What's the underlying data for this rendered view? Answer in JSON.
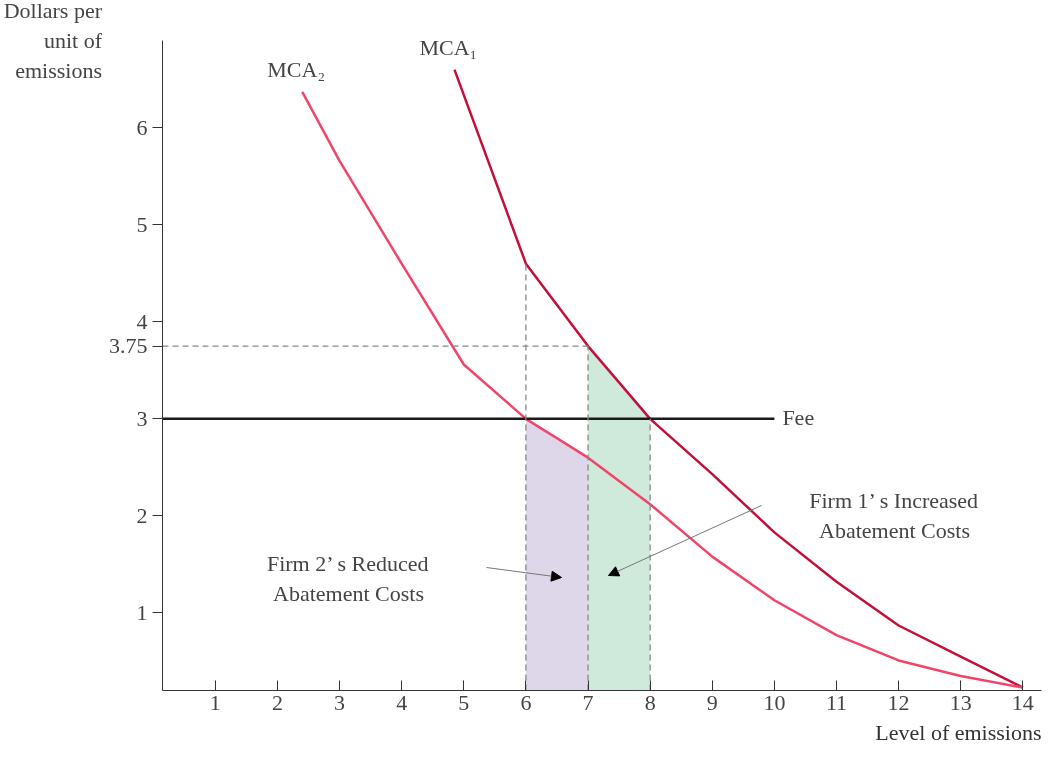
{
  "chart_data": {
    "type": "line",
    "xlabel": "Level of emissions",
    "ylabel": "Dollars per unit of emissions",
    "xlim": [
      0.15,
      14.3
    ],
    "ylim": [
      0.2,
      6.9
    ],
    "xticks": [
      1,
      2,
      3,
      4,
      5,
      6,
      7,
      8,
      9,
      10,
      11,
      12,
      13,
      14
    ],
    "yticks": [
      1,
      2,
      3,
      {
        "value": 3.75,
        "label": "3.75"
      },
      4,
      5,
      6
    ],
    "grid": false,
    "marker": "none",
    "series": [
      {
        "name": "MCA₁",
        "color": "#c2103a",
        "x": [
          4.85,
          6,
          7,
          8,
          9,
          10,
          11,
          12,
          13,
          14
        ],
        "values": [
          6.6,
          4.6,
          3.75,
          3.0,
          2.43,
          1.83,
          1.32,
          0.87,
          0.55,
          0.23
        ]
      },
      {
        "name": "MCA₂",
        "color": "#f0456a",
        "x": [
          2.4,
          3,
          4,
          5,
          6,
          7,
          8,
          9,
          10,
          11,
          12,
          13,
          14
        ],
        "values": [
          6.37,
          5.66,
          4.6,
          3.56,
          3.0,
          2.6,
          2.12,
          1.58,
          1.13,
          0.77,
          0.51,
          0.35,
          0.23
        ]
      },
      {
        "name": "Fee",
        "color": "#1a1a1a",
        "x": [
          0.15,
          10
        ],
        "values": [
          3,
          3
        ]
      },
      {
        "type": "area",
        "color": "#ded7ea",
        "x": [
          6,
          6.5,
          7
        ],
        "values": [
          3.0,
          2.78,
          2.6
        ]
      },
      {
        "type": "area",
        "color": "#cfeadb",
        "x": [
          7,
          7.5,
          8
        ],
        "values": [
          3.75,
          3.35,
          3.0
        ]
      },
      {
        "line_style": "dashed",
        "color": "#888888",
        "x": [
          0.15,
          7
        ],
        "values": [
          3.75,
          3.75
        ]
      },
      {
        "line_style": "dashed",
        "color": "#888888",
        "x": [
          6,
          6
        ],
        "values": [
          0.2,
          4.6
        ]
      },
      {
        "line_style": "dashed",
        "color": "#888888",
        "x": [
          7,
          7
        ],
        "values": [
          0.2,
          3.75
        ]
      },
      {
        "line_style": "dashed",
        "color": "#888888",
        "x": [
          8,
          8
        ],
        "values": [
          0.2,
          3.0
        ]
      }
    ],
    "annotations": [
      "Firm 2’ s Reduced Abatement Costs",
      "Firm 1’ s Increased Abatement Costs"
    ]
  }
}
